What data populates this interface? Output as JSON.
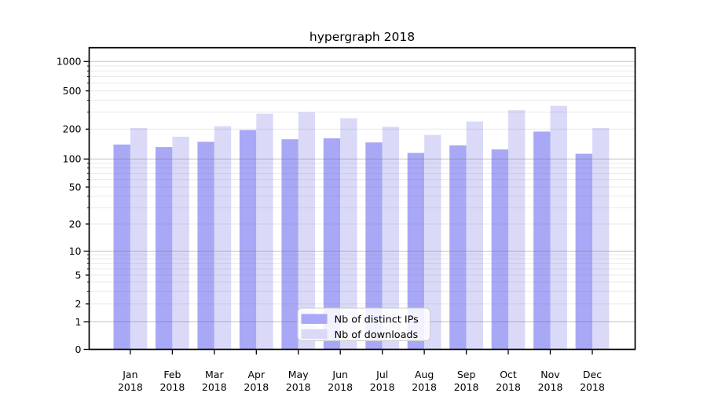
{
  "chart_data": {
    "type": "bar",
    "title": "hypergraph 2018",
    "categories": [
      "Jan",
      "Feb",
      "Mar",
      "Apr",
      "May",
      "Jun",
      "Jul",
      "Aug",
      "Sep",
      "Oct",
      "Nov",
      "Dec"
    ],
    "category_year": "2018",
    "series": [
      {
        "name": "Nb of distinct IPs",
        "color": "#a8a8f6",
        "values": [
          140,
          132,
          149,
          196,
          158,
          162,
          147,
          115,
          137,
          125,
          189,
          113
        ]
      },
      {
        "name": "Nb of downloads",
        "color": "#dadaf8",
        "values": [
          205,
          168,
          215,
          290,
          300,
          260,
          212,
          175,
          240,
          315,
          350,
          205
        ]
      }
    ],
    "y_axis": {
      "scale": "symlog",
      "tick_values": [
        0,
        1,
        2,
        5,
        10,
        20,
        50,
        100,
        200,
        500,
        1000
      ],
      "minor_unlabeled_gridlines": [
        3,
        4,
        6,
        7,
        8,
        9,
        30,
        40,
        60,
        70,
        80,
        90,
        300,
        400,
        600,
        700,
        800,
        900
      ],
      "major_gridline_values": [
        1,
        10,
        100,
        1000
      ]
    },
    "xlabel": "",
    "ylabel": "",
    "grid": true,
    "legend": {
      "position": "lower center",
      "labels": [
        "Nb of distinct IPs",
        "Nb of downloads"
      ]
    }
  },
  "colors": {
    "bar_dark": "#a8a8f6",
    "bar_light": "#dadaf8",
    "grid_major": "rgba(110,110,110,0.42)",
    "grid_minor": "rgba(110,110,110,0.15)",
    "spine": "#000000",
    "legend_border": "#cccccc",
    "legend_bg": "rgba(255,255,255,0.85)"
  }
}
